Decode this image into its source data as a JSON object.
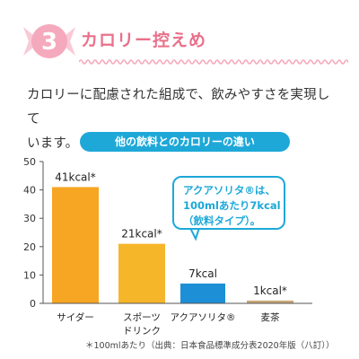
{
  "header": {
    "number": "3",
    "title": "カロリー控えめ"
  },
  "description": {
    "line1": "カロリーに配慮された組成で、飲みやすさを実現して",
    "line2": "います。"
  },
  "chart_title": "他の飲料とのカロリーの違い",
  "callout": {
    "line1": "アクアソリタ®は、",
    "line2": "100mlあたり7kcal",
    "line3": "（飲料タイプ）。"
  },
  "footnote": "＊100mlあたり（出典：日本食品標準成分表2020年版（八訂））",
  "colors": {
    "accent_pink": "#e9708a",
    "accent_blue": "#1ea8d8",
    "bar_orange": "#f6a623",
    "bar_yellow": "#f5b62a",
    "bar_blue": "#1d8fd6",
    "bar_tan": "#c9a877"
  },
  "chart_data": {
    "type": "bar",
    "categories": [
      {
        "label": "サイダー",
        "lines": [
          "サイダー"
        ]
      },
      {
        "label": "スポーツドリンク",
        "lines": [
          "スポーツ",
          "ドリンク"
        ]
      },
      {
        "label": "アクアソリタ®",
        "lines": [
          "アクアソリタ®"
        ]
      },
      {
        "label": "麦茶",
        "lines": [
          "麦茶"
        ]
      }
    ],
    "values": [
      41,
      21,
      7,
      1
    ],
    "value_labels": [
      "41kcal*",
      "21kcal*",
      "7kcal",
      "1kcal*"
    ],
    "bar_colors": [
      "#f6a623",
      "#f5b62a",
      "#1d8fd6",
      "#c9a877"
    ],
    "title": "他の飲料とのカロリーの違い",
    "ylim": [
      0,
      50
    ],
    "yticks": [
      0,
      10,
      20,
      30,
      40,
      50
    ],
    "grid": false
  }
}
